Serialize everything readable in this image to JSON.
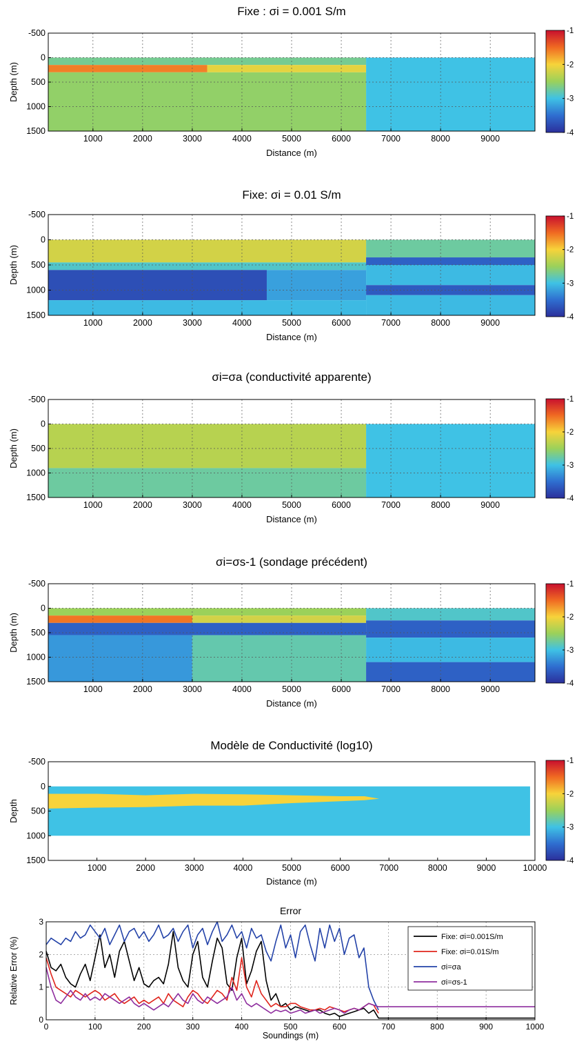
{
  "figure": {
    "colorbar_ticks": [
      "-1",
      "-2",
      "-3",
      "-4"
    ],
    "colorbar_colors": [
      "#c8102e",
      "#f06a22",
      "#f7d33a",
      "#9bd15a",
      "#3fc2e5",
      "#2f6ed0",
      "#2b2f9b"
    ]
  },
  "chart_data": [
    {
      "type": "heatmap",
      "title": "Fixe : σi = 0.001 S/m",
      "xlabel": "Distance (m)",
      "ylabel": "Depth (m)",
      "xlim": [
        100,
        9900
      ],
      "ylim": [
        -500,
        1500
      ],
      "y_inverted": true,
      "x_ticks": [
        "1000",
        "2000",
        "3000",
        "4000",
        "5000",
        "6000",
        "7000",
        "8000",
        "9000"
      ],
      "y_ticks": [
        "-500",
        "0",
        "500",
        "1000",
        "1500"
      ],
      "colorbar_range": [
        -4,
        -1
      ],
      "grid": true,
      "data_extent": {
        "xmax": 9900,
        "ymin": 0,
        "ymax": 1500
      },
      "bands": [
        {
          "x0": 100,
          "x1": 6500,
          "y0": 0,
          "y1": 150,
          "value": -2.7
        },
        {
          "x0": 100,
          "x1": 3300,
          "y0": 150,
          "y1": 300,
          "value": -1.6
        },
        {
          "x0": 3300,
          "x1": 6500,
          "y0": 150,
          "y1": 300,
          "value": -2.1
        },
        {
          "x0": 100,
          "x1": 6500,
          "y0": 300,
          "y1": 1500,
          "value": -2.55
        },
        {
          "x0": 6500,
          "x1": 9900,
          "y0": 0,
          "y1": 1500,
          "value": -3
        }
      ]
    },
    {
      "type": "heatmap",
      "title": "Fixe: σi = 0.01 S/m",
      "xlabel": "Distance (m)",
      "ylabel": "Depth (m)",
      "xlim": [
        100,
        9900
      ],
      "ylim": [
        -500,
        1500
      ],
      "y_inverted": true,
      "x_ticks": [
        "1000",
        "2000",
        "3000",
        "4000",
        "5000",
        "6000",
        "7000",
        "8000",
        "9000"
      ],
      "y_ticks": [
        "-500",
        "0",
        "500",
        "1000",
        "1500"
      ],
      "colorbar_range": [
        -4,
        -1
      ],
      "grid": true,
      "data_extent": {
        "xmax": 9900,
        "ymin": 0,
        "ymax": 1500
      },
      "bands": [
        {
          "x0": 100,
          "x1": 6500,
          "y0": 0,
          "y1": 450,
          "value": -2.2
        },
        {
          "x0": 100,
          "x1": 6500,
          "y0": 450,
          "y1": 600,
          "value": -2.9
        },
        {
          "x0": 100,
          "x1": 4500,
          "y0": 600,
          "y1": 1200,
          "value": -3.75
        },
        {
          "x0": 4500,
          "x1": 6500,
          "y0": 600,
          "y1": 1200,
          "value": -3.2
        },
        {
          "x0": 100,
          "x1": 6500,
          "y0": 1200,
          "y1": 1500,
          "value": -3.05
        },
        {
          "x0": 6500,
          "x1": 9900,
          "y0": 0,
          "y1": 350,
          "value": -2.75
        },
        {
          "x0": 6500,
          "x1": 9900,
          "y0": 350,
          "y1": 500,
          "value": -3.6
        },
        {
          "x0": 6500,
          "x1": 9900,
          "y0": 500,
          "y1": 900,
          "value": -3.05
        },
        {
          "x0": 6500,
          "x1": 9900,
          "y0": 900,
          "y1": 1100,
          "value": -3.65
        },
        {
          "x0": 6500,
          "x1": 9900,
          "y0": 1100,
          "y1": 1500,
          "value": -3.05
        }
      ]
    },
    {
      "type": "heatmap",
      "title": "σi=σa (conductivité apparente)",
      "xlabel": "Distance (m)",
      "ylabel": "Depth (m)",
      "xlim": [
        100,
        9900
      ],
      "ylim": [
        -500,
        1500
      ],
      "y_inverted": true,
      "x_ticks": [
        "1000",
        "2000",
        "3000",
        "4000",
        "5000",
        "6000",
        "7000",
        "8000",
        "9000"
      ],
      "y_ticks": [
        "-500",
        "0",
        "500",
        "1000",
        "1500"
      ],
      "colorbar_range": [
        -4,
        -1
      ],
      "grid": true,
      "data_extent": {
        "xmax": 9900,
        "ymin": 0,
        "ymax": 1500
      },
      "bands": [
        {
          "x0": 100,
          "x1": 6500,
          "y0": 0,
          "y1": 900,
          "value": -2.35
        },
        {
          "x0": 100,
          "x1": 6500,
          "y0": 900,
          "y1": 1500,
          "value": -2.75
        },
        {
          "x0": 6500,
          "x1": 9900,
          "y0": 0,
          "y1": 1500,
          "value": -3
        }
      ]
    },
    {
      "type": "heatmap",
      "title": "σi=σs-1 (sondage précédent)",
      "xlabel": "Distance (m)",
      "ylabel": "Depth (m)",
      "xlim": [
        100,
        9900
      ],
      "ylim": [
        -500,
        1500
      ],
      "y_inverted": true,
      "x_ticks": [
        "1000",
        "2000",
        "3000",
        "4000",
        "5000",
        "6000",
        "7000",
        "8000",
        "9000"
      ],
      "y_ticks": [
        "-500",
        "0",
        "500",
        "1000",
        "1500"
      ],
      "colorbar_range": [
        -4,
        -1
      ],
      "grid": true,
      "data_extent": {
        "xmax": 9900,
        "ymin": 0,
        "ymax": 1500
      },
      "bands": [
        {
          "x0": 100,
          "x1": 6500,
          "y0": 0,
          "y1": 150,
          "value": -2.5
        },
        {
          "x0": 100,
          "x1": 3000,
          "y0": 150,
          "y1": 300,
          "value": -1.55
        },
        {
          "x0": 3000,
          "x1": 6500,
          "y0": 150,
          "y1": 300,
          "value": -2.2
        },
        {
          "x0": 100,
          "x1": 6500,
          "y0": 300,
          "y1": 550,
          "value": -3.6
        },
        {
          "x0": 100,
          "x1": 3000,
          "y0": 550,
          "y1": 1500,
          "value": -3.25
        },
        {
          "x0": 3000,
          "x1": 6500,
          "y0": 550,
          "y1": 1500,
          "value": -2.8
        },
        {
          "x0": 6500,
          "x1": 9900,
          "y0": 0,
          "y1": 250,
          "value": -2.9
        },
        {
          "x0": 6500,
          "x1": 9900,
          "y0": 250,
          "y1": 600,
          "value": -3.6
        },
        {
          "x0": 6500,
          "x1": 9900,
          "y0": 600,
          "y1": 1100,
          "value": -3.05
        },
        {
          "x0": 6500,
          "x1": 9900,
          "y0": 1100,
          "y1": 1500,
          "value": -3.6
        }
      ]
    },
    {
      "type": "heatmap",
      "title": "Modèle de Conductivité (log10)",
      "xlabel": "Distance (m)",
      "ylabel": "Depth",
      "xlim": [
        0,
        10000
      ],
      "ylim": [
        -500,
        1500
      ],
      "y_inverted": true,
      "x_ticks": [
        "1000",
        "2000",
        "3000",
        "4000",
        "5000",
        "6000",
        "7000",
        "8000",
        "9000",
        "10000"
      ],
      "y_ticks": [
        "-500",
        "0",
        "500",
        "1000",
        "1500"
      ],
      "colorbar_range": [
        -4,
        -1
      ],
      "grid": false,
      "data_extent": {
        "xmax": 9900,
        "ymin": 0,
        "ymax": 1000
      },
      "background_value": -3,
      "layer": {
        "value": -2,
        "x": [
          0,
          1000,
          2000,
          3000,
          4000,
          5000,
          6000,
          6500,
          6800
        ],
        "top": [
          150,
          150,
          180,
          150,
          160,
          180,
          200,
          200,
          250
        ],
        "bottom": [
          450,
          430,
          420,
          390,
          390,
          340,
          300,
          280,
          250
        ]
      }
    },
    {
      "type": "line",
      "title": "Error",
      "xlabel": "Soundings (m)",
      "ylabel": "Relative Error (%)",
      "xlim": [
        0,
        1000
      ],
      "ylim": [
        0,
        3
      ],
      "x_ticks": [
        "0",
        "100",
        "200",
        "300",
        "400",
        "500",
        "600",
        "700",
        "800",
        "900",
        "1000"
      ],
      "y_ticks": [
        "0",
        "1",
        "2",
        "3"
      ],
      "grid": true,
      "legend_position": "top-right",
      "series": [
        {
          "name": "Fixe: σi=0.001S/m",
          "color": "#000000",
          "x": [
            0,
            10,
            20,
            30,
            40,
            50,
            60,
            70,
            80,
            90,
            100,
            110,
            120,
            130,
            140,
            150,
            160,
            170,
            180,
            190,
            200,
            210,
            220,
            230,
            240,
            250,
            260,
            270,
            280,
            290,
            300,
            310,
            320,
            330,
            340,
            350,
            360,
            370,
            380,
            390,
            400,
            410,
            420,
            430,
            440,
            450,
            460,
            470,
            480,
            490,
            500,
            510,
            520,
            530,
            540,
            550,
            560,
            570,
            580,
            590,
            600,
            610,
            620,
            630,
            640,
            650,
            660,
            670,
            680,
            1000
          ],
          "y": [
            2.1,
            1.6,
            1.5,
            1.7,
            1.3,
            1.1,
            1.0,
            1.4,
            1.7,
            1.2,
            1.9,
            2.6,
            1.6,
            2.0,
            1.3,
            2.1,
            2.4,
            1.8,
            1.2,
            1.6,
            1.1,
            1.0,
            1.2,
            1.3,
            1.1,
            1.7,
            2.7,
            1.6,
            1.2,
            1.0,
            2.0,
            2.4,
            1.3,
            1.0,
            1.8,
            2.5,
            2.2,
            1.1,
            0.9,
            1.9,
            2.5,
            1.1,
            1.5,
            2.1,
            2.4,
            1.2,
            0.6,
            0.8,
            0.4,
            0.5,
            0.3,
            0.4,
            0.35,
            0.3,
            0.25,
            0.3,
            0.3,
            0.2,
            0.15,
            0.2,
            0.1,
            0.15,
            0.2,
            0.25,
            0.3,
            0.35,
            0.2,
            0.3,
            0.05,
            0.05
          ]
        },
        {
          "name": "Fixe: σi=0.01S/m",
          "color": "#e0241c",
          "x": [
            0,
            10,
            20,
            30,
            40,
            50,
            60,
            70,
            80,
            90,
            100,
            110,
            120,
            130,
            140,
            150,
            160,
            170,
            180,
            190,
            200,
            210,
            220,
            230,
            240,
            250,
            260,
            270,
            280,
            290,
            300,
            310,
            320,
            330,
            340,
            350,
            360,
            370,
            380,
            390,
            400,
            410,
            420,
            430,
            440,
            450,
            460,
            470,
            480,
            490,
            500,
            510,
            520,
            530,
            540,
            550,
            560,
            570,
            580,
            590,
            600,
            610,
            620,
            630,
            640,
            650,
            660,
            670,
            680
          ],
          "y": [
            1.9,
            1.4,
            1.0,
            0.9,
            0.8,
            0.7,
            0.9,
            0.8,
            0.7,
            0.8,
            0.9,
            0.8,
            0.6,
            0.7,
            0.8,
            0.6,
            0.5,
            0.6,
            0.7,
            0.5,
            0.6,
            0.5,
            0.6,
            0.7,
            0.5,
            0.8,
            0.6,
            0.5,
            0.4,
            0.7,
            0.9,
            0.8,
            0.6,
            0.5,
            0.7,
            0.9,
            0.8,
            0.6,
            1.3,
            0.9,
            1.9,
            1.0,
            0.7,
            1.2,
            0.8,
            0.6,
            0.4,
            0.5,
            0.4,
            0.4,
            0.5,
            0.5,
            0.4,
            0.35,
            0.3,
            0.3,
            0.35,
            0.3,
            0.4,
            0.35,
            0.3,
            0.25,
            0.3,
            0.35,
            0.3,
            0.4,
            0.5,
            0.45,
            0.2
          ]
        },
        {
          "name": "σi=σa",
          "color": "#2342a8",
          "x": [
            0,
            10,
            20,
            30,
            40,
            50,
            60,
            70,
            80,
            90,
            100,
            110,
            120,
            130,
            140,
            150,
            160,
            170,
            180,
            190,
            200,
            210,
            220,
            230,
            240,
            250,
            260,
            270,
            280,
            290,
            300,
            310,
            320,
            330,
            340,
            350,
            360,
            370,
            380,
            390,
            400,
            410,
            420,
            430,
            440,
            450,
            460,
            470,
            480,
            490,
            500,
            510,
            520,
            530,
            540,
            550,
            560,
            570,
            580,
            590,
            600,
            610,
            620,
            630,
            640,
            650,
            660,
            670,
            680
          ],
          "y": [
            2.3,
            2.5,
            2.4,
            2.3,
            2.5,
            2.4,
            2.7,
            2.5,
            2.6,
            2.9,
            2.7,
            2.5,
            2.8,
            2.3,
            2.6,
            2.9,
            2.4,
            2.7,
            2.8,
            2.5,
            2.7,
            2.4,
            2.6,
            2.9,
            2.5,
            2.6,
            2.8,
            2.4,
            2.7,
            2.9,
            2.2,
            2.6,
            2.8,
            2.3,
            2.7,
            3.0,
            2.4,
            2.6,
            2.9,
            2.5,
            2.7,
            2.2,
            2.8,
            2.5,
            2.6,
            2.1,
            1.8,
            2.4,
            2.9,
            2.2,
            2.6,
            1.9,
            2.7,
            2.9,
            2.3,
            1.8,
            2.8,
            2.2,
            2.9,
            2.4,
            2.8,
            2.0,
            2.5,
            2.6,
            1.9,
            2.2,
            1.0,
            0.6,
            0.3
          ]
        },
        {
          "name": "σi=σs-1",
          "color": "#8e2d9e",
          "x": [
            0,
            10,
            20,
            30,
            40,
            50,
            60,
            70,
            80,
            90,
            100,
            110,
            120,
            130,
            140,
            150,
            160,
            170,
            180,
            190,
            200,
            210,
            220,
            230,
            240,
            250,
            260,
            270,
            280,
            290,
            300,
            310,
            320,
            330,
            340,
            350,
            360,
            370,
            380,
            390,
            400,
            410,
            420,
            430,
            440,
            450,
            460,
            470,
            480,
            490,
            500,
            510,
            520,
            530,
            540,
            550,
            560,
            570,
            580,
            590,
            600,
            610,
            620,
            630,
            640,
            650,
            660,
            670,
            680,
            1000
          ],
          "y": [
            1.6,
            1.0,
            0.6,
            0.5,
            0.7,
            0.9,
            0.7,
            0.6,
            0.8,
            0.6,
            0.7,
            0.6,
            0.8,
            0.7,
            0.6,
            0.5,
            0.6,
            0.7,
            0.5,
            0.4,
            0.5,
            0.4,
            0.3,
            0.4,
            0.5,
            0.4,
            0.6,
            0.8,
            0.6,
            0.5,
            0.8,
            0.6,
            0.5,
            0.7,
            0.6,
            0.5,
            0.6,
            0.7,
            1.0,
            0.6,
            0.8,
            0.5,
            0.4,
            0.5,
            0.4,
            0.3,
            0.2,
            0.3,
            0.25,
            0.3,
            0.2,
            0.25,
            0.3,
            0.2,
            0.25,
            0.3,
            0.2,
            0.25,
            0.3,
            0.35,
            0.3,
            0.2,
            0.3,
            0.35,
            0.3,
            0.4,
            0.5,
            0.45,
            0.4,
            0.4
          ]
        }
      ]
    }
  ]
}
